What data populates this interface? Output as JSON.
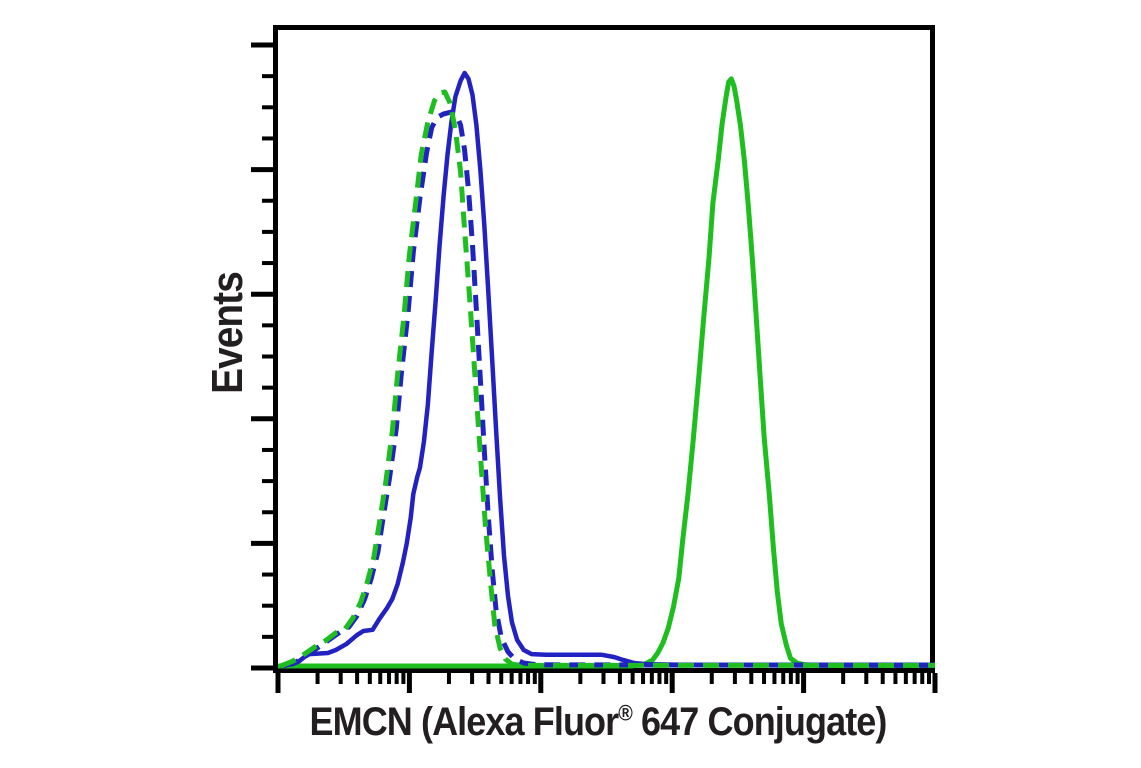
{
  "page": {
    "background_color": "#ffffff",
    "figure_type": "flow cytometry histogram overlay"
  },
  "labels": {
    "y_axis": "Events",
    "x_axis_pre": "EMCN (Alexa Fluor",
    "x_axis_sup": "®",
    "x_axis_post": " 647 Conjugate)"
  },
  "chart_data": {
    "type": "line",
    "subtype": "flow-cytometry-histogram-overlay",
    "title": "",
    "xlabel": "EMCN (Alexa Fluor® 647 Conjugate)",
    "ylabel": "Events",
    "x_scale": "log",
    "x_decades": 5,
    "x_range_log10": [
      0,
      5
    ],
    "y_range_normalized": [
      0,
      1
    ],
    "grid": false,
    "legend_position": "none",
    "axis_numeric_labels_visible": false,
    "frame_color": "#000000",
    "tick_style": {
      "x_major_count": 6,
      "x_minor_pattern": "log positions 2-9 per decade",
      "y_major_count": 6,
      "y_minors_between_majors": 3
    },
    "series": [
      {
        "id": "solid-green",
        "name": "solid green histogram (right, positive population)",
        "style": "solid",
        "color": "#1fbe1f",
        "stroke_width": 5,
        "peak_log10_x": 3.45,
        "peak_height": 0.99,
        "points": [
          [
            0.0,
            0
          ],
          [
            2.69,
            0
          ],
          [
            2.79,
            0.003
          ],
          [
            2.85,
            0.01
          ],
          [
            2.89,
            0.022
          ],
          [
            2.93,
            0.039
          ],
          [
            2.97,
            0.064
          ],
          [
            3.01,
            0.1
          ],
          [
            3.05,
            0.148
          ],
          [
            3.08,
            0.212
          ],
          [
            3.12,
            0.29
          ],
          [
            3.16,
            0.381
          ],
          [
            3.2,
            0.482
          ],
          [
            3.24,
            0.587
          ],
          [
            3.28,
            0.688
          ],
          [
            3.31,
            0.781
          ],
          [
            3.35,
            0.853
          ],
          [
            3.38,
            0.914
          ],
          [
            3.41,
            0.96
          ],
          [
            3.43,
            0.985
          ],
          [
            3.45,
            0.99
          ],
          [
            3.47,
            0.978
          ],
          [
            3.49,
            0.954
          ],
          [
            3.52,
            0.911
          ],
          [
            3.55,
            0.85
          ],
          [
            3.58,
            0.774
          ],
          [
            3.61,
            0.685
          ],
          [
            3.64,
            0.587
          ],
          [
            3.67,
            0.486
          ],
          [
            3.7,
            0.385
          ],
          [
            3.74,
            0.287
          ],
          [
            3.77,
            0.199
          ],
          [
            3.8,
            0.125
          ],
          [
            3.83,
            0.071
          ],
          [
            3.87,
            0.034
          ],
          [
            3.9,
            0.013
          ],
          [
            3.95,
            0.005
          ],
          [
            4.01,
            0.002
          ],
          [
            4.11,
            0.001
          ],
          [
            5.0,
            0.001
          ]
        ]
      },
      {
        "id": "solid-blue",
        "name": "solid blue histogram (left, tall peak)",
        "style": "solid",
        "color": "#2222c3",
        "stroke_width": 4.5,
        "peak_log10_x": 1.42,
        "peak_height": 1.0,
        "points": [
          [
            0.02,
            0
          ],
          [
            0.11,
            0.003
          ],
          [
            0.16,
            0.008
          ],
          [
            0.2,
            0.015
          ],
          [
            0.24,
            0.02
          ],
          [
            0.38,
            0.022
          ],
          [
            0.44,
            0.027
          ],
          [
            0.52,
            0.037
          ],
          [
            0.6,
            0.052
          ],
          [
            0.65,
            0.059
          ],
          [
            0.72,
            0.061
          ],
          [
            0.77,
            0.079
          ],
          [
            0.83,
            0.098
          ],
          [
            0.87,
            0.113
          ],
          [
            0.91,
            0.138
          ],
          [
            0.95,
            0.174
          ],
          [
            0.98,
            0.207
          ],
          [
            1.01,
            0.25
          ],
          [
            1.03,
            0.29
          ],
          [
            1.06,
            0.319
          ],
          [
            1.08,
            0.334
          ],
          [
            1.11,
            0.378
          ],
          [
            1.14,
            0.44
          ],
          [
            1.17,
            0.53
          ],
          [
            1.2,
            0.617
          ],
          [
            1.23,
            0.71
          ],
          [
            1.26,
            0.793
          ],
          [
            1.29,
            0.862
          ],
          [
            1.32,
            0.917
          ],
          [
            1.35,
            0.96
          ],
          [
            1.39,
            0.987
          ],
          [
            1.42,
            1.0
          ],
          [
            1.45,
            0.99
          ],
          [
            1.48,
            0.963
          ],
          [
            1.51,
            0.912
          ],
          [
            1.54,
            0.836
          ],
          [
            1.57,
            0.744
          ],
          [
            1.6,
            0.634
          ],
          [
            1.63,
            0.516
          ],
          [
            1.66,
            0.398
          ],
          [
            1.69,
            0.283
          ],
          [
            1.72,
            0.186
          ],
          [
            1.75,
            0.118
          ],
          [
            1.78,
            0.074
          ],
          [
            1.82,
            0.044
          ],
          [
            1.87,
            0.027
          ],
          [
            1.93,
            0.02
          ],
          [
            2.04,
            0.019
          ],
          [
            2.24,
            0.019
          ],
          [
            2.46,
            0.019
          ],
          [
            2.56,
            0.015
          ],
          [
            2.63,
            0.01
          ],
          [
            2.71,
            0.005
          ],
          [
            2.81,
            0.003
          ],
          [
            3.08,
            0.002
          ],
          [
            3.69,
            0.002
          ],
          [
            4.45,
            0.002
          ],
          [
            5.0,
            0.002
          ]
        ]
      },
      {
        "id": "dashed-blue",
        "name": "dashed blue histogram (left, control)",
        "style": "dashed",
        "color": "#2222c3",
        "stroke_width": 5,
        "dash_array": "16 9",
        "peak_log10_x": 1.32,
        "peak_height": 0.934,
        "points": [
          [
            0.04,
            0
          ],
          [
            0.14,
            0.007
          ],
          [
            0.21,
            0.017
          ],
          [
            0.31,
            0.032
          ],
          [
            0.4,
            0.046
          ],
          [
            0.47,
            0.057
          ],
          [
            0.54,
            0.066
          ],
          [
            0.6,
            0.084
          ],
          [
            0.66,
            0.113
          ],
          [
            0.71,
            0.148
          ],
          [
            0.76,
            0.192
          ],
          [
            0.8,
            0.25
          ],
          [
            0.85,
            0.319
          ],
          [
            0.9,
            0.401
          ],
          [
            0.94,
            0.496
          ],
          [
            0.99,
            0.597
          ],
          [
            1.03,
            0.698
          ],
          [
            1.08,
            0.789
          ],
          [
            1.13,
            0.865
          ],
          [
            1.17,
            0.908
          ],
          [
            1.21,
            0.925
          ],
          [
            1.26,
            0.931
          ],
          [
            1.32,
            0.934
          ],
          [
            1.36,
            0.928
          ],
          [
            1.39,
            0.912
          ],
          [
            1.42,
            0.87
          ],
          [
            1.45,
            0.803
          ],
          [
            1.48,
            0.71
          ],
          [
            1.51,
            0.6
          ],
          [
            1.54,
            0.482
          ],
          [
            1.57,
            0.364
          ],
          [
            1.6,
            0.255
          ],
          [
            1.63,
            0.162
          ],
          [
            1.66,
            0.094
          ],
          [
            1.7,
            0.047
          ],
          [
            1.75,
            0.024
          ],
          [
            1.8,
            0.012
          ],
          [
            1.87,
            0.005
          ],
          [
            1.97,
            0.002
          ],
          [
            5.0,
            0.001
          ]
        ]
      },
      {
        "id": "dashed-green",
        "name": "dashed green histogram (left, control)",
        "style": "dashed",
        "color": "#1fbe1f",
        "stroke_width": 5,
        "dash_array": "16 9",
        "peak_log10_x": 1.27,
        "peak_height": 0.968,
        "points": [
          [
            0.02,
            0
          ],
          [
            0.11,
            0.008
          ],
          [
            0.18,
            0.017
          ],
          [
            0.28,
            0.032
          ],
          [
            0.37,
            0.044
          ],
          [
            0.44,
            0.056
          ],
          [
            0.51,
            0.062
          ],
          [
            0.57,
            0.081
          ],
          [
            0.63,
            0.108
          ],
          [
            0.68,
            0.142
          ],
          [
            0.73,
            0.184
          ],
          [
            0.77,
            0.239
          ],
          [
            0.82,
            0.309
          ],
          [
            0.87,
            0.395
          ],
          [
            0.91,
            0.491
          ],
          [
            0.96,
            0.592
          ],
          [
            1.0,
            0.693
          ],
          [
            1.05,
            0.786
          ],
          [
            1.09,
            0.862
          ],
          [
            1.14,
            0.917
          ],
          [
            1.19,
            0.953
          ],
          [
            1.23,
            0.966
          ],
          [
            1.27,
            0.968
          ],
          [
            1.31,
            0.949
          ],
          [
            1.35,
            0.904
          ],
          [
            1.39,
            0.833
          ],
          [
            1.42,
            0.735
          ],
          [
            1.46,
            0.617
          ],
          [
            1.5,
            0.486
          ],
          [
            1.54,
            0.356
          ],
          [
            1.58,
            0.233
          ],
          [
            1.62,
            0.135
          ],
          [
            1.65,
            0.069
          ],
          [
            1.69,
            0.03
          ],
          [
            1.73,
            0.012
          ],
          [
            1.78,
            0.003
          ],
          [
            1.85,
            0.001
          ],
          [
            5.0,
            0.001
          ]
        ]
      }
    ]
  }
}
